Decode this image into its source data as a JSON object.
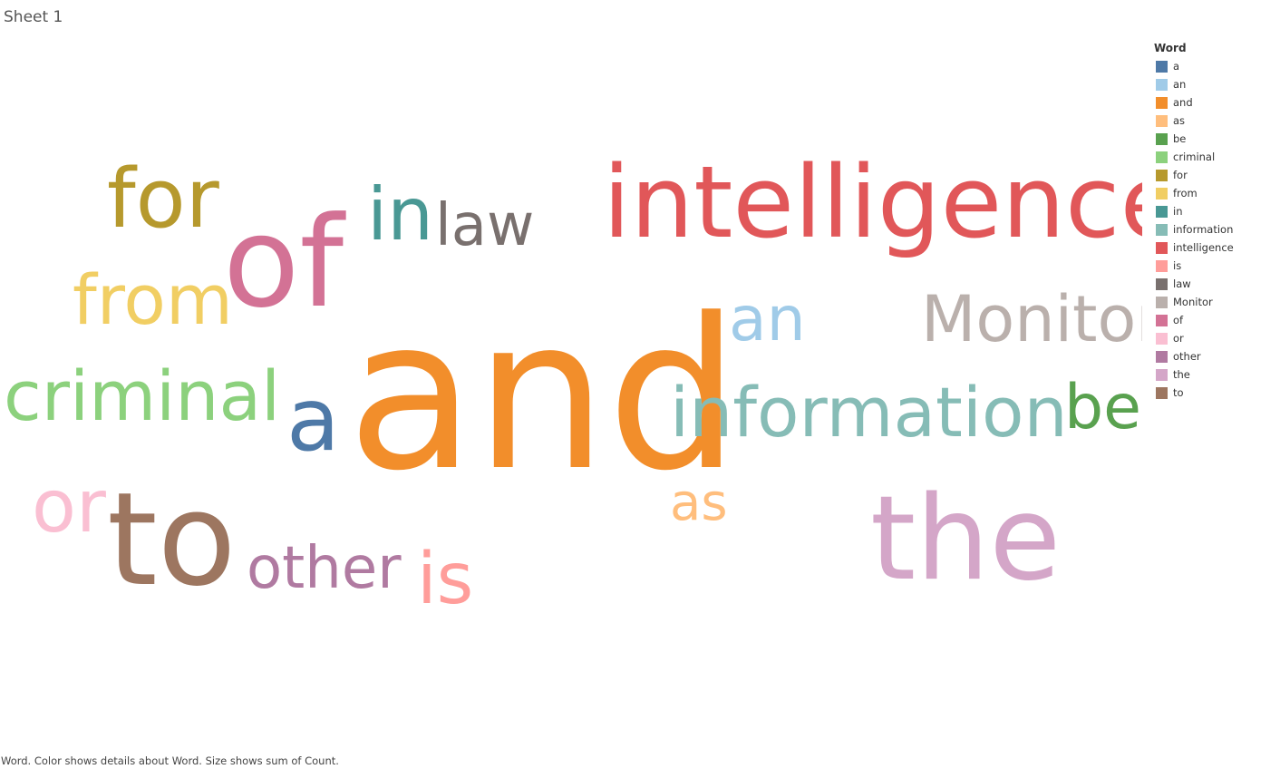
{
  "sheet": {
    "title": "Sheet 1"
  },
  "caption": "Word.  Color shows details about Word.  Size shows sum of Count.",
  "legend": {
    "title": "Word",
    "items": [
      {
        "label": "a",
        "color": "#4e79a7"
      },
      {
        "label": "an",
        "color": "#a0cbe8"
      },
      {
        "label": "and",
        "color": "#f28e2b"
      },
      {
        "label": "as",
        "color": "#ffbe7d"
      },
      {
        "label": "be",
        "color": "#59a14f"
      },
      {
        "label": "criminal",
        "color": "#8cd17d"
      },
      {
        "label": "for",
        "color": "#b6992d"
      },
      {
        "label": "from",
        "color": "#f1ce63"
      },
      {
        "label": "in",
        "color": "#499894"
      },
      {
        "label": "information",
        "color": "#86bcb6"
      },
      {
        "label": "intelligence",
        "color": "#e15759"
      },
      {
        "label": "is",
        "color": "#ff9d9a"
      },
      {
        "label": "law",
        "color": "#79706e"
      },
      {
        "label": "Monitor",
        "color": "#bab0ac"
      },
      {
        "label": "of",
        "color": "#d37295"
      },
      {
        "label": "or",
        "color": "#fabfd2"
      },
      {
        "label": "other",
        "color": "#b07aa1"
      },
      {
        "label": "the",
        "color": "#d4a6c8"
      },
      {
        "label": "to",
        "color": "#9d7660"
      }
    ]
  },
  "chart_data": {
    "type": "word_cloud",
    "size_measure": "sum of Count",
    "color_dimension": "Word",
    "words": [
      {
        "word": "and",
        "relative_size": 1.0,
        "color": "#f28e2b"
      },
      {
        "word": "to",
        "relative_size": 0.62,
        "color": "#9d7660"
      },
      {
        "word": "of",
        "relative_size": 0.6,
        "color": "#d37295"
      },
      {
        "word": "the",
        "relative_size": 0.56,
        "color": "#d4a6c8"
      },
      {
        "word": "intelligence",
        "relative_size": 0.48,
        "color": "#e15759"
      },
      {
        "word": "information",
        "relative_size": 0.4,
        "color": "#86bcb6"
      },
      {
        "word": "criminal",
        "relative_size": 0.4,
        "color": "#8cd17d"
      },
      {
        "word": "a",
        "relative_size": 0.38,
        "color": "#4e79a7"
      },
      {
        "word": "for",
        "relative_size": 0.38,
        "color": "#b6992d"
      },
      {
        "word": "in",
        "relative_size": 0.36,
        "color": "#499894"
      },
      {
        "word": "or",
        "relative_size": 0.36,
        "color": "#fabfd2"
      },
      {
        "word": "from",
        "relative_size": 0.34,
        "color": "#f1ce63"
      },
      {
        "word": "Monitor",
        "relative_size": 0.34,
        "color": "#bab0ac"
      },
      {
        "word": "be",
        "relative_size": 0.34,
        "color": "#59a14f"
      },
      {
        "word": "an",
        "relative_size": 0.33,
        "color": "#a0cbe8"
      },
      {
        "word": "is",
        "relative_size": 0.33,
        "color": "#ff9d9a"
      },
      {
        "word": "other",
        "relative_size": 0.31,
        "color": "#b07aa1"
      },
      {
        "word": "law",
        "relative_size": 0.3,
        "color": "#79706e"
      },
      {
        "word": "as",
        "relative_size": 0.28,
        "color": "#ffbe7d"
      }
    ]
  }
}
